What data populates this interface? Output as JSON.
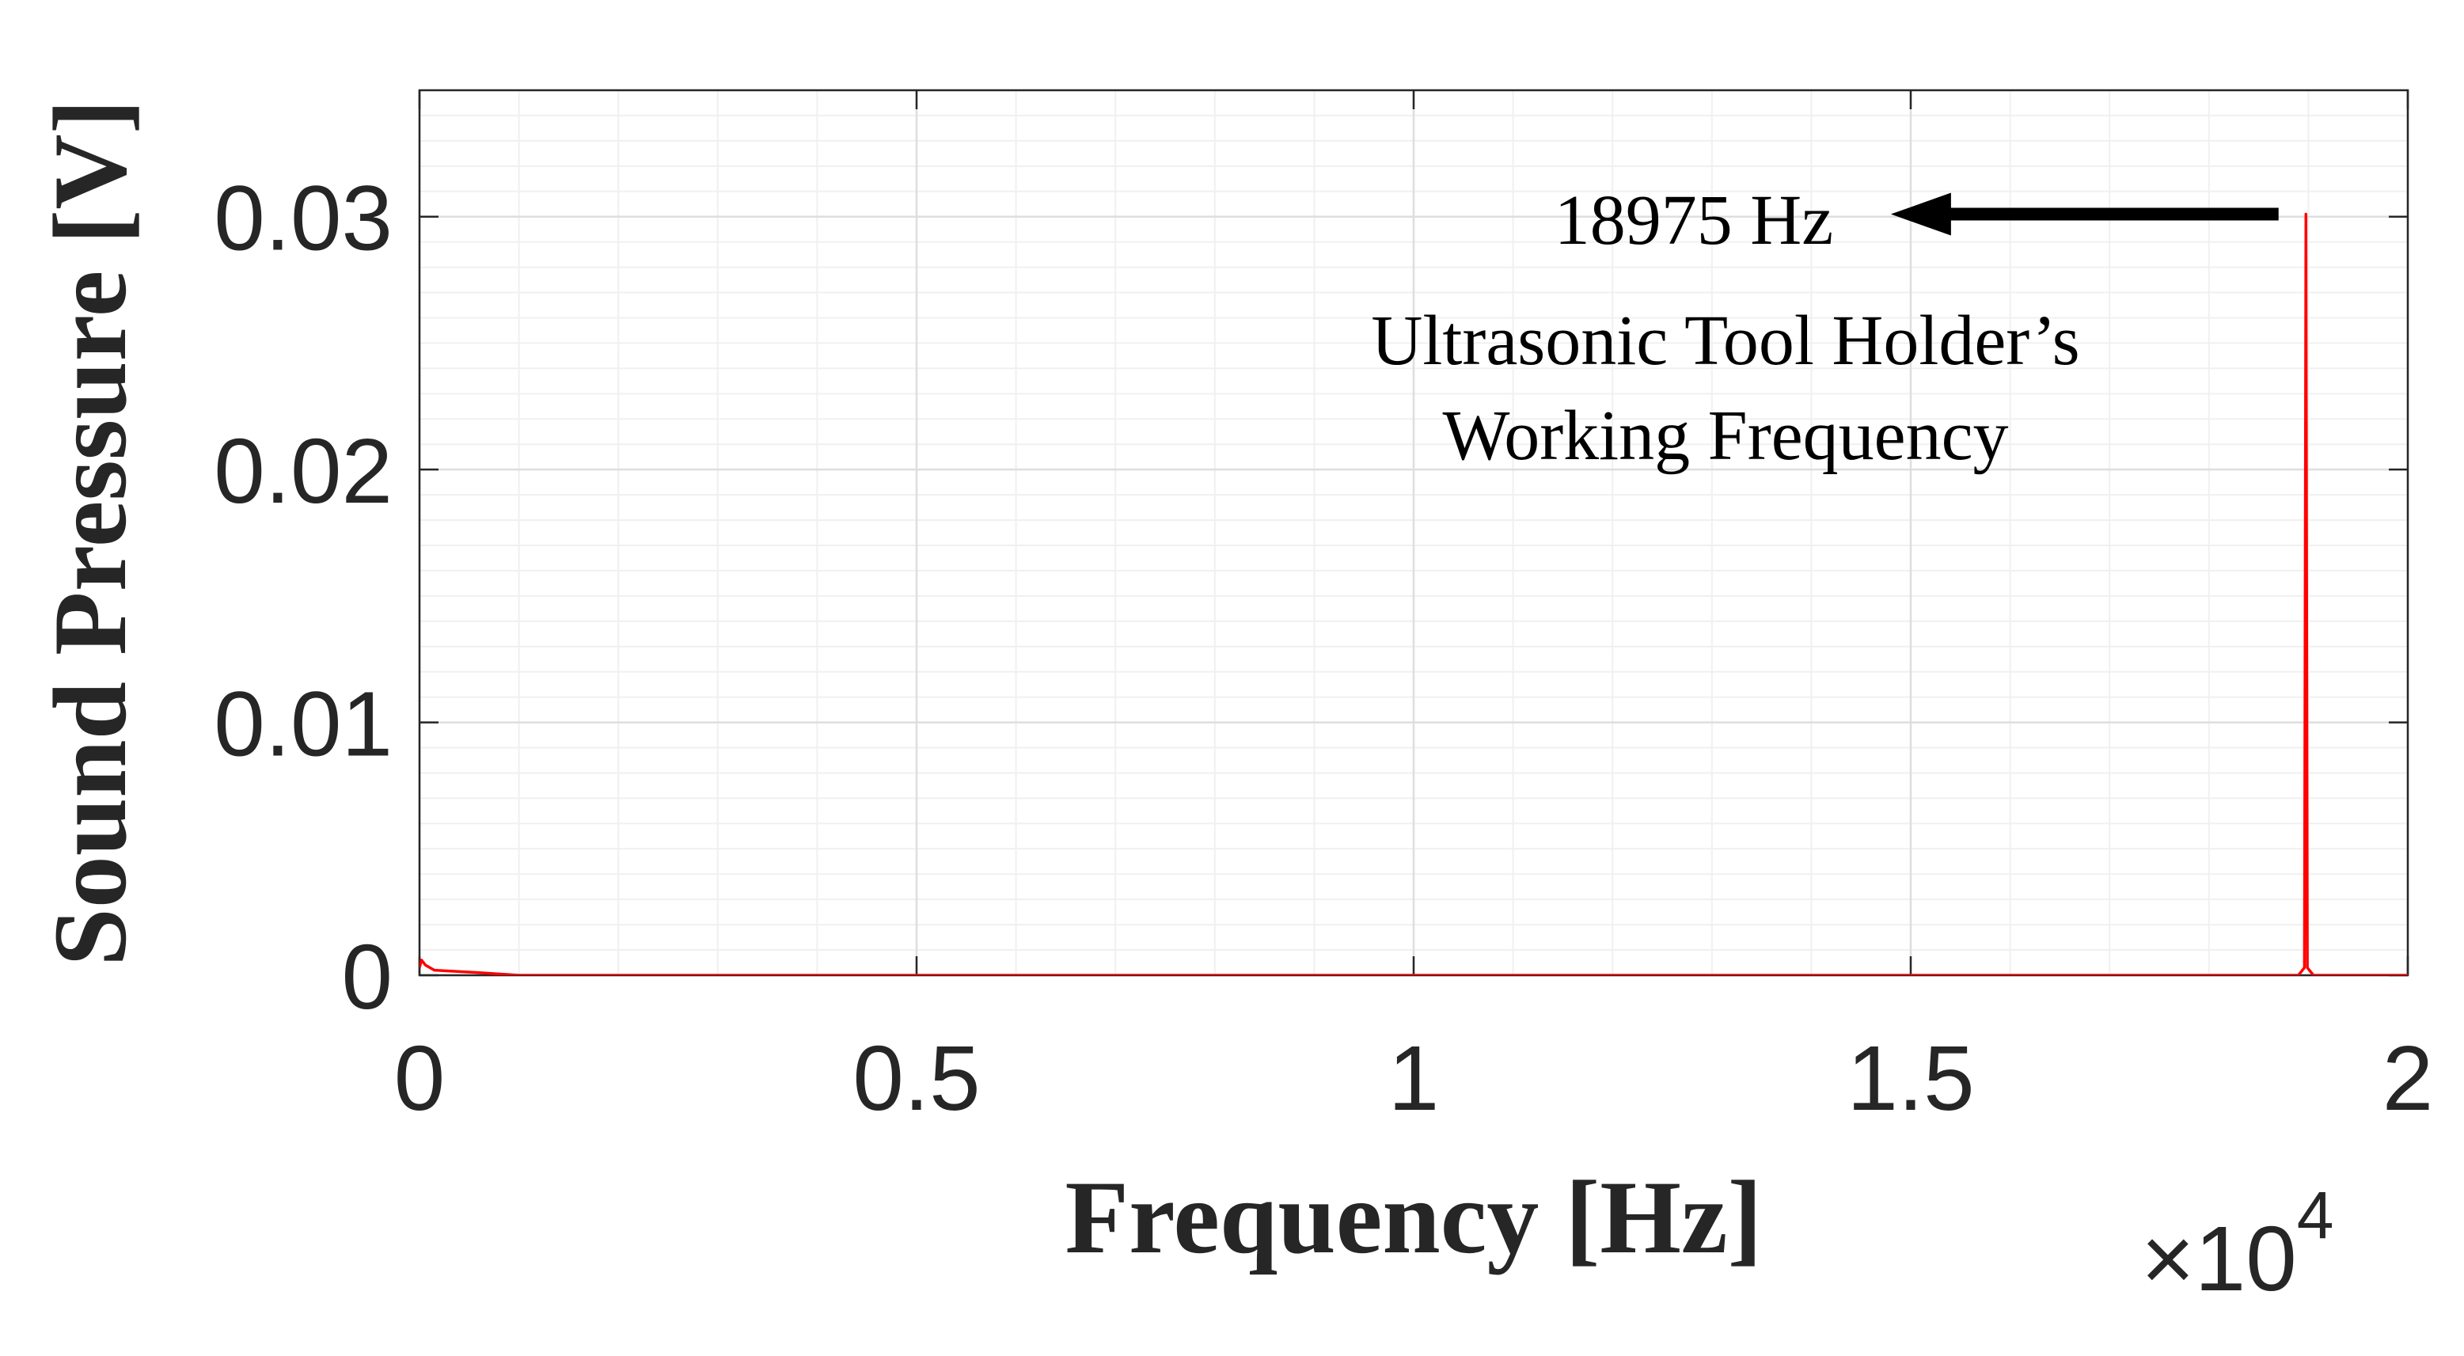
{
  "chart_data": {
    "type": "line",
    "xlabel": "Frequency [Hz]",
    "ylabel": "Sound Pressure [V]",
    "xlim": [
      0,
      20000
    ],
    "ylim": [
      0,
      0.035
    ],
    "x_ticks": [
      0,
      5000,
      10000,
      15000,
      20000
    ],
    "x_tick_labels": [
      "0",
      "0.5",
      "1",
      "1.5",
      "2"
    ],
    "x_exponent_label": "×10",
    "x_exponent_power": "4",
    "y_ticks": [
      0,
      0.01,
      0.02,
      0.03
    ],
    "y_tick_labels": [
      "0",
      "0.01",
      "0.02",
      "0.03"
    ],
    "grid": true,
    "series": [
      {
        "color": "#ff0000",
        "x": [
          0,
          20,
          60,
          150,
          600,
          1000,
          5000,
          10000,
          15000,
          18900,
          18960,
          18975,
          18990,
          19050,
          20000
        ],
        "y": [
          0.0003,
          0.0006,
          0.0004,
          0.0002,
          0.0001,
          0.0,
          0.0,
          0.0,
          0.0,
          0.0,
          0.0003,
          0.0301,
          0.0003,
          0.0,
          0.0
        ]
      }
    ],
    "annotations": {
      "peak_label": "18975 Hz",
      "description_line1": "Ultrasonic Tool Holder’s",
      "description_line2": "Working Frequency",
      "arrow_from": [
        18700,
        0.0301
      ],
      "arrow_to": [
        14800,
        0.0301
      ]
    }
  }
}
